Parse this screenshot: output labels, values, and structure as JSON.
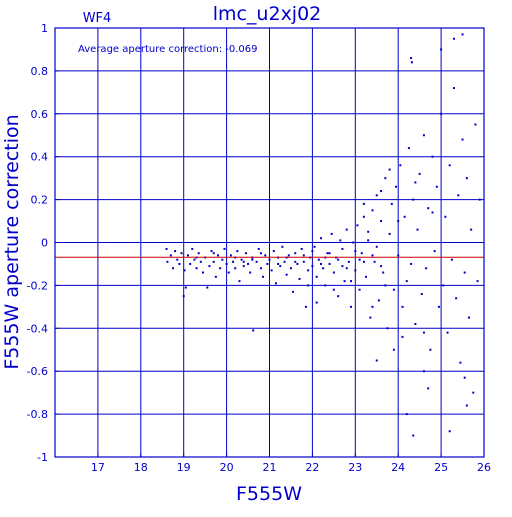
{
  "chart_data": {
    "type": "scatter",
    "title": "lmc_u2xj02",
    "panel_label": "WF4",
    "annotation": "Average aperture correction: -0.069",
    "xlabel": "F555W",
    "ylabel": "F555W aperture correction",
    "xlim": [
      16,
      26
    ],
    "ylim": [
      -1,
      1
    ],
    "xticks": [
      17,
      18,
      19,
      20,
      21,
      22,
      23,
      24,
      25,
      26
    ],
    "yticks": [
      -1,
      -0.8,
      -0.6,
      -0.4,
      -0.2,
      0,
      0.2,
      0.4,
      0.6,
      0.8,
      1
    ],
    "ytick_labels": [
      "-1",
      "-0.8",
      "-0.6",
      "-0.4",
      "-0.2",
      "0",
      "0.2",
      "0.4",
      "0.6",
      "0.8",
      "1"
    ],
    "grid": true,
    "reference_line": {
      "y": -0.069,
      "color": "#cc0000"
    },
    "colors": {
      "frame": "#0000cc",
      "points": "#0000cc",
      "reference": "#cc0000",
      "background": "#ffffff"
    },
    "points": [
      [
        18.6,
        -0.03
      ],
      [
        18.62,
        -0.09
      ],
      [
        18.7,
        -0.06
      ],
      [
        18.75,
        -0.12
      ],
      [
        18.8,
        -0.04
      ],
      [
        18.85,
        -0.08
      ],
      [
        18.9,
        -0.1
      ],
      [
        18.95,
        -0.05
      ],
      [
        19.0,
        -0.25
      ],
      [
        19.02,
        -0.13
      ],
      [
        19.05,
        -0.21
      ],
      [
        19.1,
        -0.06
      ],
      [
        19.15,
        -0.1
      ],
      [
        19.2,
        -0.03
      ],
      [
        19.25,
        -0.08
      ],
      [
        19.3,
        -0.12
      ],
      [
        19.35,
        -0.05
      ],
      [
        19.4,
        -0.09
      ],
      [
        19.45,
        -0.14
      ],
      [
        19.5,
        -0.07
      ],
      [
        19.55,
        -0.21
      ],
      [
        19.6,
        -0.11
      ],
      [
        19.65,
        -0.04
      ],
      [
        19.7,
        -0.09
      ],
      [
        19.75,
        -0.16
      ],
      [
        19.8,
        -0.06
      ],
      [
        19.85,
        -0.12
      ],
      [
        19.9,
        -0.08
      ],
      [
        19.95,
        -0.03
      ],
      [
        20.0,
        -0.1
      ],
      [
        20.05,
        -0.14
      ],
      [
        20.1,
        -0.06
      ],
      [
        20.15,
        -0.09
      ],
      [
        20.2,
        -0.12
      ],
      [
        20.25,
        -0.04
      ],
      [
        20.3,
        -0.18
      ],
      [
        20.35,
        -0.08
      ],
      [
        20.4,
        -0.11
      ],
      [
        20.45,
        -0.05
      ],
      [
        20.5,
        -0.1
      ],
      [
        20.55,
        -0.14
      ],
      [
        20.6,
        -0.07
      ],
      [
        20.62,
        -0.41
      ],
      [
        20.7,
        -0.09
      ],
      [
        20.75,
        -0.03
      ],
      [
        20.8,
        -0.12
      ],
      [
        20.85,
        -0.16
      ],
      [
        20.9,
        -0.06
      ],
      [
        20.95,
        -0.1
      ],
      [
        21.0,
        -0.08
      ],
      [
        21.05,
        -0.13
      ],
      [
        21.1,
        -0.04
      ],
      [
        21.15,
        -0.19
      ],
      [
        21.2,
        -0.07
      ],
      [
        21.25,
        -0.11
      ],
      [
        21.3,
        -0.02
      ],
      [
        21.35,
        -0.09
      ],
      [
        21.4,
        -0.15
      ],
      [
        21.45,
        -0.06
      ],
      [
        21.5,
        -0.12
      ],
      [
        21.55,
        -0.23
      ],
      [
        21.6,
        -0.05
      ],
      [
        21.65,
        -0.1
      ],
      [
        21.7,
        -0.17
      ],
      [
        21.75,
        -0.03
      ],
      [
        21.8,
        -0.09
      ],
      [
        21.85,
        -0.3
      ],
      [
        21.9,
        -0.13
      ],
      [
        21.95,
        -0.07
      ],
      [
        22.0,
        -0.11
      ],
      [
        22.05,
        -0.02
      ],
      [
        22.1,
        -0.16
      ],
      [
        22.15,
        -0.08
      ],
      [
        22.2,
        0.02
      ],
      [
        22.25,
        -0.12
      ],
      [
        22.3,
        -0.2
      ],
      [
        22.35,
        -0.05
      ],
      [
        22.4,
        -0.1
      ],
      [
        22.45,
        0.04
      ],
      [
        22.5,
        -0.14
      ],
      [
        22.55,
        -0.07
      ],
      [
        22.6,
        -0.25
      ],
      [
        22.65,
        0.01
      ],
      [
        22.7,
        -0.11
      ],
      [
        22.75,
        -0.18
      ],
      [
        22.8,
        0.06
      ],
      [
        22.85,
        -0.09
      ],
      [
        22.9,
        -0.3
      ],
      [
        22.95,
        0.0
      ],
      [
        23.0,
        -0.13
      ],
      [
        23.05,
        0.08
      ],
      [
        23.1,
        -0.22
      ],
      [
        23.15,
        -0.05
      ],
      [
        23.2,
        0.12
      ],
      [
        23.25,
        -0.16
      ],
      [
        23.3,
        0.05
      ],
      [
        23.35,
        -0.35
      ],
      [
        23.4,
        0.15
      ],
      [
        23.45,
        -0.09
      ],
      [
        23.5,
        0.22
      ],
      [
        23.55,
        -0.27
      ],
      [
        23.6,
        0.1
      ],
      [
        23.65,
        -0.14
      ],
      [
        23.7,
        0.3
      ],
      [
        23.75,
        -0.4
      ],
      [
        23.8,
        0.04
      ],
      [
        23.85,
        0.18
      ],
      [
        23.9,
        -0.22
      ],
      [
        23.95,
        0.26
      ],
      [
        24.0,
        -0.06
      ],
      [
        24.05,
        0.36
      ],
      [
        24.1,
        -0.3
      ],
      [
        24.15,
        0.12
      ],
      [
        24.2,
        -0.18
      ],
      [
        24.25,
        0.44
      ],
      [
        24.3,
        -0.1
      ],
      [
        24.35,
        0.2
      ],
      [
        24.4,
        -0.38
      ],
      [
        24.45,
        0.06
      ],
      [
        24.5,
        0.32
      ],
      [
        24.55,
        -0.24
      ],
      [
        24.6,
        0.5
      ],
      [
        24.65,
        -0.12
      ],
      [
        24.7,
        0.16
      ],
      [
        24.75,
        -0.5
      ],
      [
        24.8,
        0.4
      ],
      [
        24.85,
        -0.04
      ],
      [
        24.9,
        0.26
      ],
      [
        24.95,
        -0.3
      ],
      [
        25.0,
        0.6
      ],
      [
        25.05,
        -0.2
      ],
      [
        25.1,
        0.12
      ],
      [
        25.15,
        -0.42
      ],
      [
        25.2,
        0.36
      ],
      [
        25.25,
        -0.08
      ],
      [
        25.3,
        0.72
      ],
      [
        25.35,
        -0.26
      ],
      [
        25.4,
        0.22
      ],
      [
        25.45,
        -0.56
      ],
      [
        25.5,
        0.48
      ],
      [
        25.55,
        -0.14
      ],
      [
        25.6,
        0.3
      ],
      [
        25.65,
        -0.35
      ],
      [
        25.7,
        0.06
      ],
      [
        25.75,
        -0.7
      ],
      [
        25.8,
        0.55
      ],
      [
        25.85,
        -0.18
      ],
      [
        25.9,
        0.2
      ],
      [
        24.3,
        0.86
      ],
      [
        24.32,
        0.84
      ],
      [
        25.0,
        0.9
      ],
      [
        25.3,
        0.95
      ],
      [
        25.5,
        0.97
      ],
      [
        24.35,
        -0.9
      ],
      [
        24.7,
        -0.68
      ],
      [
        25.6,
        -0.76
      ],
      [
        25.55,
        -0.63
      ],
      [
        24.6,
        -0.42
      ],
      [
        24.2,
        -0.8
      ],
      [
        25.2,
        -0.88
      ],
      [
        22.2,
        -0.1
      ],
      [
        22.4,
        -0.05
      ],
      [
        22.6,
        -0.08
      ],
      [
        22.8,
        -0.12
      ],
      [
        23.0,
        -0.04
      ],
      [
        23.2,
        -0.09
      ],
      [
        23.4,
        -0.06
      ],
      [
        23.6,
        -0.11
      ],
      [
        21.6,
        -0.09
      ],
      [
        21.8,
        -0.06
      ],
      [
        22.0,
        -0.04
      ],
      [
        22.3,
        -0.07
      ],
      [
        22.7,
        -0.03
      ],
      [
        23.1,
        -0.08
      ],
      [
        23.3,
        0.01
      ],
      [
        23.5,
        -0.02
      ],
      [
        20.2,
        -0.07
      ],
      [
        20.4,
        -0.09
      ],
      [
        20.8,
        -0.05
      ],
      [
        21.2,
        -0.1
      ],
      [
        21.4,
        -0.07
      ],
      [
        19.3,
        -0.07
      ],
      [
        19.7,
        -0.05
      ],
      [
        20.6,
        -0.08
      ],
      [
        23.2,
        0.18
      ],
      [
        23.6,
        0.24
      ],
      [
        23.8,
        0.34
      ],
      [
        24.0,
        0.1
      ],
      [
        24.4,
        0.28
      ],
      [
        24.8,
        0.14
      ],
      [
        23.4,
        -0.3
      ],
      [
        23.7,
        -0.2
      ],
      [
        22.9,
        -0.18
      ],
      [
        22.5,
        -0.22
      ],
      [
        22.1,
        -0.28
      ],
      [
        21.9,
        -0.2
      ],
      [
        23.9,
        -0.5
      ],
      [
        24.1,
        -0.44
      ],
      [
        23.5,
        -0.55
      ],
      [
        24.6,
        -0.6
      ]
    ]
  }
}
